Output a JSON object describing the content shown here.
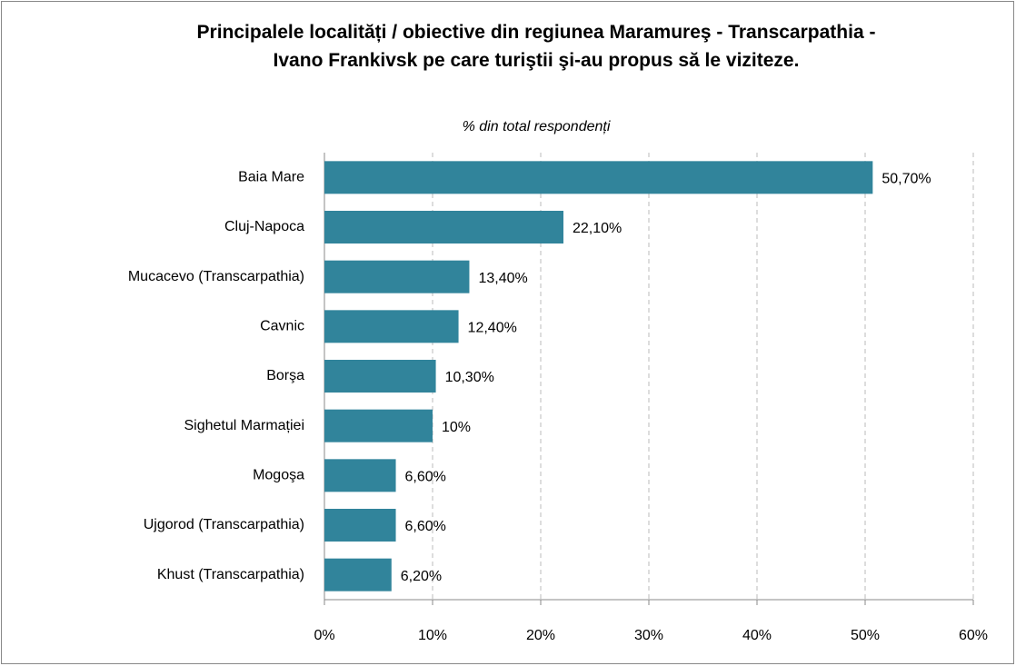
{
  "chart_data": {
    "type": "hbar",
    "title": "Principalele localități / obiective din regiunea Maramureş - Transcarpathia - Ivano Frankivsk pe care turiştii şi-au propus să le viziteze.",
    "subtitle": "% din total respondenți",
    "categories": [
      "Baia Mare",
      "Cluj-Napoca",
      "Mucacevo (Transcarpathia)",
      "Cavnic",
      "Borşa",
      "Sighetul Marmației",
      "Mogoşa",
      "Ujgorod (Transcarpathia)",
      "Khust (Transcarpathia)"
    ],
    "values": [
      50.7,
      22.1,
      13.4,
      12.4,
      10.3,
      10,
      6.6,
      6.6,
      6.2
    ],
    "value_labels": [
      "50,70%",
      "22,10%",
      "13,40%",
      "12,40%",
      "10,30%",
      "10%",
      "6,60%",
      "6,60%",
      "6,20%"
    ],
    "color": "#31849b",
    "xlim": [
      0,
      60
    ],
    "xticks": [
      {
        "value": 0,
        "label": "0%"
      },
      {
        "value": 10,
        "label": "10%"
      },
      {
        "value": 20,
        "label": "20%"
      },
      {
        "value": 30,
        "label": "30%"
      },
      {
        "value": 40,
        "label": "40%"
      },
      {
        "value": 50,
        "label": "50%"
      },
      {
        "value": 60,
        "label": "60%"
      }
    ],
    "grid": true
  }
}
